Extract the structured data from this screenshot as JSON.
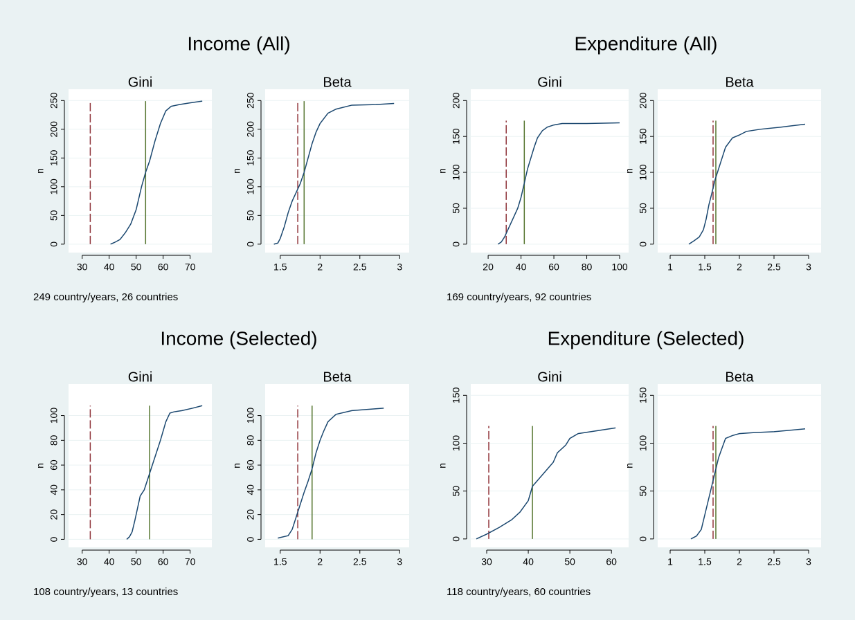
{
  "groups": [
    {
      "title": "Income (All)",
      "note": "249 country/years, 26 countries"
    },
    {
      "title": "Expenditure (All)",
      "note": "169 country/years, 92 countries"
    },
    {
      "title": "Income (Selected)",
      "note": "108 country/years, 13 countries"
    },
    {
      "title": "Expenditure (Selected)",
      "note": "118 country/years, 60 countries"
    }
  ],
  "chart_data": [
    {
      "type": "line",
      "title": "Gini",
      "ylabel": "n",
      "color": "#1a476f",
      "grid": true,
      "x": [
        40.5,
        42,
        44,
        46,
        48,
        50,
        52,
        53.5,
        55,
        57,
        59,
        61,
        63,
        66,
        70,
        74.5
      ],
      "y": [
        0,
        3,
        8,
        20,
        35,
        60,
        100,
        125,
        145,
        180,
        210,
        232,
        240,
        243,
        246,
        249
      ],
      "xlim": [
        27,
        76
      ],
      "xticks": [
        30,
        40,
        50,
        60,
        70
      ],
      "ylim": [
        -5,
        260
      ],
      "yticks": [
        0,
        50,
        100,
        150,
        200,
        250
      ],
      "reference_lines": [
        {
          "x": 33,
          "y": [
            0,
            249
          ],
          "color": "#90353b",
          "dashed": true
        },
        {
          "x": 53.5,
          "y": [
            0,
            249
          ],
          "color": "#55752f",
          "dashed": false
        }
      ]
    },
    {
      "type": "line",
      "title": "Beta",
      "ylabel": "n",
      "color": "#1a476f",
      "grid": true,
      "x": [
        1.42,
        1.47,
        1.5,
        1.55,
        1.6,
        1.65,
        1.7,
        1.75,
        1.8,
        1.85,
        1.9,
        1.95,
        2.0,
        2.1,
        2.2,
        2.4,
        2.7,
        2.93
      ],
      "y": [
        0,
        2,
        10,
        30,
        55,
        75,
        90,
        105,
        125,
        150,
        175,
        195,
        210,
        228,
        235,
        242,
        243,
        245
      ],
      "xlim": [
        1.38,
        3.05
      ],
      "xticks": [
        1.5,
        2,
        2.5,
        3
      ],
      "ylim": [
        -5,
        260
      ],
      "yticks": [
        0,
        50,
        100,
        150,
        200,
        250
      ],
      "reference_lines": [
        {
          "x": 1.72,
          "y": [
            0,
            249
          ],
          "color": "#90353b",
          "dashed": true
        },
        {
          "x": 1.8,
          "y": [
            0,
            249
          ],
          "color": "#55752f",
          "dashed": false
        }
      ]
    },
    {
      "type": "line",
      "title": "Gini",
      "ylabel": "n",
      "color": "#1a476f",
      "grid": true,
      "x": [
        26,
        28,
        30,
        32,
        35,
        38,
        40,
        42,
        44,
        46,
        48,
        50,
        53,
        56,
        60,
        65,
        80,
        100
      ],
      "y": [
        0,
        3,
        10,
        20,
        35,
        50,
        65,
        85,
        105,
        120,
        135,
        148,
        158,
        163,
        166,
        168,
        168,
        169
      ],
      "xlim": [
        12.8,
        102.1
      ],
      "xticks": [
        20,
        40,
        60,
        80,
        100
      ],
      "ylim": [
        -4,
        208
      ],
      "yticks": [
        0,
        50,
        100,
        150,
        200
      ],
      "reference_lines": [
        {
          "x": 31,
          "y": [
            0,
            172
          ],
          "color": "#90353b",
          "dashed": true
        },
        {
          "x": 42,
          "y": [
            0,
            172
          ],
          "color": "#55752f",
          "dashed": false
        }
      ]
    },
    {
      "type": "line",
      "title": "Beta",
      "ylabel": "n",
      "color": "#1a476f",
      "grid": true,
      "x": [
        1.27,
        1.35,
        1.42,
        1.48,
        1.52,
        1.56,
        1.6,
        1.65,
        1.7,
        1.75,
        1.8,
        1.9,
        2.0,
        2.1,
        2.3,
        2.6,
        2.95
      ],
      "y": [
        0,
        5,
        10,
        20,
        35,
        55,
        70,
        90,
        105,
        120,
        135,
        148,
        152,
        157,
        160,
        163,
        167
      ],
      "xlim": [
        0.9,
        3.1
      ],
      "xticks": [
        1,
        1.5,
        2,
        2.5,
        3
      ],
      "ylim": [
        -4,
        208
      ],
      "yticks": [
        0,
        50,
        100,
        150,
        200
      ],
      "reference_lines": [
        {
          "x": 1.62,
          "y": [
            0,
            172
          ],
          "color": "#90353b",
          "dashed": true
        },
        {
          "x": 1.66,
          "y": [
            0,
            172
          ],
          "color": "#55752f",
          "dashed": false
        }
      ]
    },
    {
      "type": "line",
      "title": "Gini",
      "ylabel": "n",
      "color": "#1a476f",
      "grid": true,
      "x": [
        46.5,
        47.5,
        48.5,
        49.5,
        50.5,
        51.5,
        53,
        54.5,
        56,
        57.5,
        59,
        61,
        62.5,
        64,
        67,
        71,
        74.5
      ],
      "y": [
        0,
        2,
        6,
        15,
        25,
        35,
        40,
        50,
        60,
        70,
        80,
        95,
        102,
        103,
        104,
        106,
        108
      ],
      "xlim": [
        27,
        76
      ],
      "xticks": [
        30,
        40,
        50,
        60,
        70
      ],
      "ylim": [
        -2,
        121
      ],
      "yticks": [
        0,
        20,
        40,
        60,
        80,
        100
      ],
      "reference_lines": [
        {
          "x": 33,
          "y": [
            0,
            108
          ],
          "color": "#90353b",
          "dashed": true
        },
        {
          "x": 55,
          "y": [
            0,
            108
          ],
          "color": "#55752f",
          "dashed": false
        }
      ]
    },
    {
      "type": "line",
      "title": "Beta",
      "ylabel": "n",
      "color": "#1a476f",
      "grid": true,
      "x": [
        1.47,
        1.6,
        1.65,
        1.7,
        1.75,
        1.8,
        1.85,
        1.9,
        1.95,
        2.0,
        2.05,
        2.1,
        2.2,
        2.4,
        2.8
      ],
      "y": [
        1,
        3,
        8,
        18,
        28,
        38,
        47,
        57,
        70,
        80,
        88,
        95,
        101,
        104,
        106
      ],
      "xlim": [
        1.38,
        3.05
      ],
      "xticks": [
        1.5,
        2,
        2.5,
        3
      ],
      "ylim": [
        -2,
        121
      ],
      "yticks": [
        0,
        20,
        40,
        60,
        80,
        100
      ],
      "reference_lines": [
        {
          "x": 1.72,
          "y": [
            0,
            108
          ],
          "color": "#90353b",
          "dashed": true
        },
        {
          "x": 1.9,
          "y": [
            0,
            108
          ],
          "color": "#55752f",
          "dashed": false
        }
      ]
    },
    {
      "type": "line",
      "title": "Gini",
      "ylabel": "n",
      "color": "#1a476f",
      "grid": true,
      "x": [
        27.5,
        30,
        33,
        36,
        38,
        40,
        41,
        42,
        44,
        46,
        47,
        49,
        50,
        52,
        55,
        58,
        61
      ],
      "y": [
        0,
        5,
        12,
        20,
        28,
        40,
        55,
        60,
        70,
        80,
        90,
        98,
        105,
        110,
        112,
        114,
        116
      ],
      "xlim": [
        27.5,
        62.8
      ],
      "xticks": [
        30,
        40,
        50,
        60
      ],
      "ylim": [
        -3,
        156
      ],
      "yticks": [
        0,
        50,
        100,
        150
      ],
      "reference_lines": [
        {
          "x": 30.5,
          "y": [
            0,
            118
          ],
          "color": "#90353b",
          "dashed": true
        },
        {
          "x": 41,
          "y": [
            0,
            118
          ],
          "color": "#55752f",
          "dashed": false
        }
      ]
    },
    {
      "type": "line",
      "title": "Beta",
      "ylabel": "n",
      "color": "#1a476f",
      "grid": true,
      "x": [
        1.3,
        1.38,
        1.45,
        1.5,
        1.55,
        1.6,
        1.65,
        1.7,
        1.75,
        1.8,
        1.9,
        2.0,
        2.2,
        2.5,
        2.95
      ],
      "y": [
        0,
        3,
        10,
        25,
        40,
        55,
        70,
        85,
        95,
        105,
        108,
        110,
        111,
        112,
        115
      ],
      "xlim": [
        0.9,
        3.1
      ],
      "xticks": [
        1,
        1.5,
        2,
        2.5,
        3
      ],
      "ylim": [
        -3,
        156
      ],
      "yticks": [
        0,
        50,
        100,
        150
      ],
      "reference_lines": [
        {
          "x": 1.62,
          "y": [
            0,
            118
          ],
          "color": "#90353b",
          "dashed": true
        },
        {
          "x": 1.66,
          "y": [
            0,
            118
          ],
          "color": "#55752f",
          "dashed": false
        }
      ]
    }
  ]
}
